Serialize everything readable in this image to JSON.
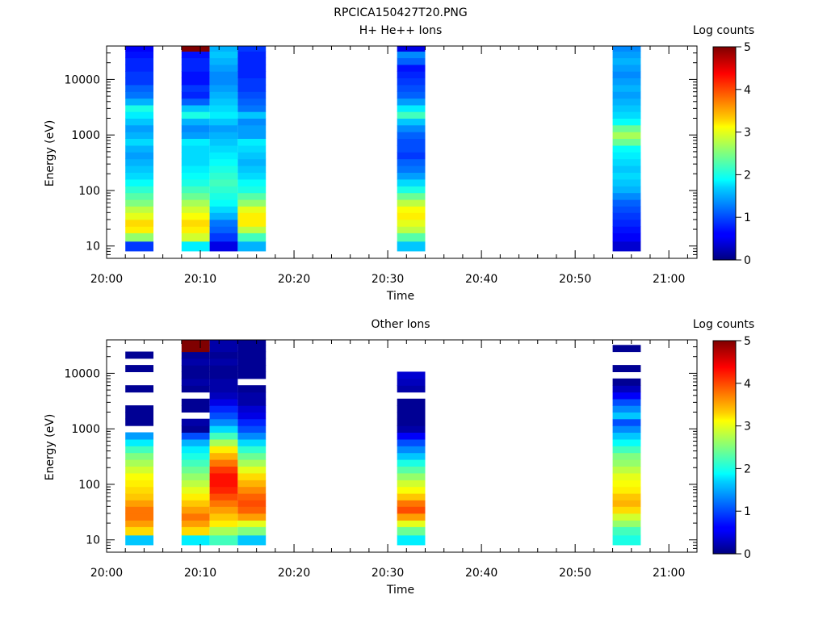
{
  "figure": {
    "title": "RPCICA150427T20.PNG"
  },
  "colors": {
    "axis": "#000000",
    "background": "#ffffff",
    "colormap": "jet"
  },
  "chart_data": [
    {
      "type": "heatmap",
      "title": "H+ He++ Ions",
      "xlabel": "Time",
      "ylabel": "Energy (eV)",
      "yscale": "log",
      "ylim": [
        6,
        40000
      ],
      "xlim": [
        "20:00",
        "21:03"
      ],
      "x_ticks": [
        "20:00",
        "20:10",
        "20:20",
        "20:30",
        "20:40",
        "20:50",
        "21:00"
      ],
      "y_ticks": [
        "10",
        "100",
        "1000",
        "10000"
      ],
      "colorbar": {
        "label": "Log counts",
        "ticks": [
          "0",
          "1",
          "2",
          "3",
          "4",
          "5"
        ],
        "range": [
          0,
          5
        ]
      },
      "columns": [
        {
          "start": "20:02",
          "end": "20:05",
          "energies": [
            10,
            15,
            20,
            26,
            35,
            46,
            60,
            80,
            105,
            140,
            185,
            245,
            325,
            430,
            570,
            750,
            1000,
            1320,
            1750,
            2300,
            3050,
            4000,
            5300,
            7000,
            9300,
            12300,
            16200,
            21400,
            28300,
            37000
          ],
          "log_counts": [
            0.9,
            2.6,
            3.2,
            3.3,
            3.0,
            2.8,
            2.5,
            2.3,
            2.1,
            1.9,
            1.7,
            1.6,
            1.5,
            1.4,
            1.5,
            1.7,
            1.5,
            1.4,
            1.6,
            1.8,
            2.0,
            1.5,
            1.2,
            1.1,
            0.9,
            0.9,
            0.8,
            0.8,
            0.7,
            0.6
          ]
        },
        {
          "start": "20:08",
          "end": "20:11",
          "energies": [
            10,
            15,
            20,
            26,
            35,
            46,
            60,
            80,
            105,
            140,
            185,
            245,
            325,
            430,
            570,
            750,
            1000,
            1320,
            1750,
            2300,
            3050,
            4000,
            5300,
            7000,
            9300,
            12300,
            16200,
            21400,
            28300,
            37000
          ],
          "log_counts": [
            1.8,
            2.9,
            3.2,
            3.3,
            3.1,
            2.9,
            2.7,
            2.4,
            2.2,
            2.0,
            1.9,
            1.8,
            1.7,
            1.7,
            1.7,
            1.8,
            1.4,
            1.3,
            1.5,
            2.0,
            1.6,
            1.1,
            0.8,
            0.9,
            0.7,
            0.7,
            0.8,
            0.8,
            0.7,
            5.0
          ]
        },
        {
          "start": "20:11",
          "end": "20:14",
          "energies": [
            10,
            15,
            20,
            26,
            35,
            46,
            60,
            80,
            105,
            140,
            185,
            245,
            325,
            430,
            570,
            750,
            1000,
            1320,
            1750,
            2300,
            3050,
            4000,
            5300,
            7000,
            9300,
            12300,
            16200,
            21400,
            28300,
            37000
          ],
          "log_counts": [
            0.5,
            0.9,
            1.1,
            1.2,
            1.5,
            1.7,
            1.9,
            2.0,
            2.1,
            2.2,
            2.1,
            2.0,
            1.9,
            1.8,
            1.7,
            1.6,
            1.5,
            1.4,
            1.6,
            1.8,
            1.7,
            1.6,
            1.5,
            1.4,
            1.3,
            1.3,
            1.4,
            1.5,
            1.6,
            1.5
          ]
        },
        {
          "start": "20:14",
          "end": "20:17",
          "energies": [
            10,
            15,
            20,
            26,
            35,
            46,
            60,
            80,
            105,
            140,
            185,
            245,
            325,
            430,
            570,
            750,
            1000,
            1320,
            1750,
            2300,
            3050,
            4000,
            5300,
            7000,
            9300,
            12300,
            16200,
            21400,
            28300,
            37000
          ],
          "log_counts": [
            1.5,
            2.2,
            2.8,
            3.2,
            3.2,
            3.0,
            2.6,
            2.3,
            2.0,
            1.9,
            1.7,
            1.6,
            1.5,
            1.6,
            1.7,
            1.8,
            1.4,
            1.4,
            1.3,
            1.6,
            1.2,
            1.1,
            1.0,
            0.9,
            0.9,
            0.8,
            0.8,
            0.8,
            0.8,
            0.9
          ]
        },
        {
          "start": "20:31",
          "end": "20:34",
          "energies": [
            10,
            15,
            20,
            26,
            35,
            46,
            60,
            80,
            105,
            140,
            185,
            245,
            325,
            430,
            570,
            750,
            1000,
            1320,
            1750,
            2300,
            3050,
            4000,
            5300,
            7000,
            9300,
            12300,
            16200,
            21400,
            28300,
            37000
          ],
          "log_counts": [
            1.6,
            2.3,
            2.8,
            3.0,
            3.2,
            3.1,
            2.8,
            2.4,
            2.0,
            1.7,
            1.4,
            1.2,
            1.1,
            0.9,
            1.0,
            1.0,
            1.1,
            1.3,
            1.6,
            2.2,
            1.8,
            1.4,
            1.1,
            1.0,
            0.9,
            0.8,
            0.7,
            1.1,
            1.3,
            0.5
          ]
        },
        {
          "start": "20:54",
          "end": "20:57",
          "energies": [
            10,
            15,
            20,
            26,
            35,
            46,
            60,
            80,
            105,
            140,
            185,
            245,
            325,
            430,
            570,
            750,
            1000,
            1320,
            1750,
            2300,
            3050,
            4000,
            5300,
            7000,
            9300,
            12300,
            16200,
            21400,
            28300,
            37000
          ],
          "log_counts": [
            0.4,
            0.6,
            0.7,
            0.8,
            0.9,
            1.0,
            1.1,
            1.3,
            1.5,
            1.6,
            1.7,
            1.6,
            1.7,
            1.8,
            1.9,
            2.4,
            2.7,
            2.4,
            1.9,
            1.7,
            1.6,
            1.5,
            1.4,
            1.5,
            1.4,
            1.3,
            1.4,
            1.5,
            1.4,
            1.3
          ]
        }
      ]
    },
    {
      "type": "heatmap",
      "title": "Other Ions",
      "xlabel": "Time",
      "ylabel": "Energy (eV)",
      "yscale": "log",
      "ylim": [
        6,
        40000
      ],
      "xlim": [
        "20:00",
        "21:03"
      ],
      "x_ticks": [
        "20:00",
        "20:10",
        "20:20",
        "20:30",
        "20:40",
        "20:50",
        "21:00"
      ],
      "y_ticks": [
        "10",
        "100",
        "1000",
        "10000"
      ],
      "colorbar": {
        "label": "Log counts",
        "ticks": [
          "0",
          "1",
          "2",
          "3",
          "4",
          "5"
        ],
        "range": [
          0,
          5
        ]
      },
      "columns": [
        {
          "start": "20:02",
          "end": "20:05",
          "energies": [
            10,
            15,
            20,
            26,
            35,
            46,
            60,
            80,
            105,
            140,
            185,
            245,
            325,
            430,
            570,
            750,
            1000,
            1320,
            1750,
            2300,
            3050,
            4000,
            5300,
            7000,
            9300,
            12300,
            16200,
            21400,
            28300,
            37000
          ],
          "log_counts": [
            1.6,
            3.3,
            3.6,
            3.8,
            3.8,
            3.6,
            3.4,
            3.3,
            3.2,
            3.1,
            2.9,
            2.7,
            2.5,
            2.2,
            1.8,
            1.4,
            null,
            0.1,
            0.1,
            0.1,
            null,
            null,
            0.1,
            null,
            null,
            0.1,
            null,
            0.1,
            null,
            null
          ]
        },
        {
          "start": "20:08",
          "end": "20:11",
          "energies": [
            10,
            15,
            20,
            26,
            35,
            46,
            60,
            80,
            105,
            140,
            185,
            245,
            325,
            430,
            570,
            750,
            1000,
            1320,
            1750,
            2300,
            3050,
            4000,
            5300,
            7000,
            9300,
            12300,
            16200,
            21400,
            28300,
            37000
          ],
          "log_counts": [
            1.8,
            3.3,
            3.6,
            3.8,
            3.6,
            3.4,
            3.2,
            3.0,
            2.8,
            2.6,
            2.4,
            2.2,
            2.0,
            1.8,
            1.5,
            1.0,
            0.1,
            0.2,
            null,
            0.1,
            0.1,
            null,
            0.1,
            0.2,
            0.1,
            0.1,
            0.2,
            0.1,
            5.0,
            5.0
          ]
        },
        {
          "start": "20:11",
          "end": "20:14",
          "energies": [
            10,
            15,
            20,
            26,
            35,
            46,
            60,
            80,
            105,
            140,
            185,
            245,
            325,
            430,
            570,
            750,
            1000,
            1320,
            1750,
            2300,
            3050,
            4000,
            5300,
            7000,
            9300,
            12300,
            16200,
            21400,
            28300,
            37000
          ],
          "log_counts": [
            2.2,
            2.7,
            3.2,
            3.4,
            3.6,
            3.8,
            4.0,
            4.2,
            4.3,
            4.3,
            4.1,
            3.8,
            3.5,
            3.2,
            2.7,
            2.2,
            1.7,
            1.3,
            1.0,
            0.8,
            0.5,
            0.3,
            0.2,
            0.2,
            0.1,
            0.1,
            0.2,
            0.1,
            0.2,
            0.2
          ]
        },
        {
          "start": "20:14",
          "end": "20:17",
          "energies": [
            10,
            15,
            20,
            26,
            35,
            46,
            60,
            80,
            105,
            140,
            185,
            245,
            325,
            430,
            570,
            750,
            1000,
            1320,
            1750,
            2300,
            3050,
            4000,
            5300,
            7000,
            9300,
            12300,
            16200,
            21400,
            28300,
            37000
          ],
          "log_counts": [
            1.6,
            2.5,
            3.0,
            3.6,
            3.9,
            4.0,
            3.9,
            3.7,
            3.5,
            3.3,
            3.0,
            2.7,
            2.4,
            2.1,
            1.7,
            1.3,
            1.0,
            0.8,
            0.5,
            0.4,
            0.2,
            0.2,
            0.1,
            null,
            0.1,
            0.1,
            0.1,
            0.1,
            0.1,
            0.1
          ]
        },
        {
          "start": "20:31",
          "end": "20:34",
          "energies": [
            10,
            15,
            20,
            26,
            35,
            46,
            60,
            80,
            105,
            140,
            185,
            245,
            325,
            430,
            570,
            750,
            1000,
            1320,
            1750,
            2300,
            3050,
            4000,
            5300,
            7000,
            9300,
            12300,
            16200,
            21400,
            28300,
            37000
          ],
          "log_counts": [
            1.8,
            2.4,
            3.0,
            3.6,
            4.0,
            3.8,
            3.4,
            3.1,
            2.9,
            2.6,
            2.3,
            2.0,
            1.6,
            1.3,
            1.0,
            0.6,
            0.2,
            0.1,
            0.1,
            0.1,
            0.1,
            null,
            0.2,
            0.3,
            0.4,
            null,
            null,
            null,
            null,
            null
          ]
        },
        {
          "start": "20:54",
          "end": "20:57",
          "energies": [
            10,
            15,
            20,
            26,
            35,
            46,
            60,
            80,
            105,
            140,
            185,
            245,
            325,
            430,
            570,
            750,
            1000,
            1320,
            1750,
            2300,
            3050,
            4000,
            5300,
            7000,
            9300,
            12300,
            16200,
            21400,
            28300,
            37000
          ],
          "log_counts": [
            2.0,
            2.2,
            2.6,
            2.9,
            3.3,
            3.5,
            3.4,
            3.2,
            3.1,
            3.0,
            2.8,
            2.6,
            2.5,
            2.2,
            1.9,
            1.6,
            1.3,
            1.0,
            1.6,
            1.3,
            1.0,
            0.6,
            0.3,
            0.1,
            null,
            0.1,
            null,
            null,
            0.1,
            null
          ]
        }
      ]
    }
  ]
}
